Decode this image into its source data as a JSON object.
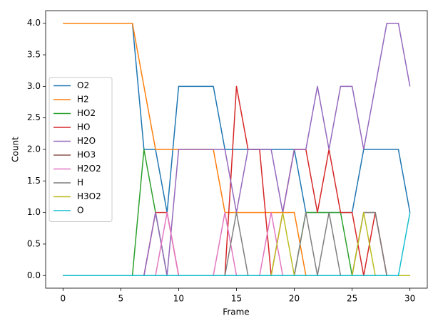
{
  "chart_data": {
    "type": "line",
    "x": [
      0,
      1,
      2,
      3,
      4,
      5,
      6,
      7,
      8,
      9,
      10,
      11,
      12,
      13,
      14,
      15,
      16,
      17,
      18,
      19,
      20,
      21,
      22,
      23,
      24,
      25,
      26,
      27,
      28,
      29,
      30
    ],
    "xlabel": "Frame",
    "ylabel": "Count",
    "xlim": [
      -1.5,
      31.5
    ],
    "ylim": [
      -0.2,
      4.2
    ],
    "xticks": [
      0,
      5,
      10,
      15,
      20,
      25,
      30
    ],
    "yticks": [
      {
        "value": 0,
        "label": "0.0"
      },
      {
        "value": 0.5,
        "label": "0.5"
      },
      {
        "value": 1,
        "label": "1.0"
      },
      {
        "value": 1.5,
        "label": "1.5"
      },
      {
        "value": 2,
        "label": "2.0"
      },
      {
        "value": 2.5,
        "label": "2.5"
      },
      {
        "value": 3,
        "label": "3.0"
      },
      {
        "value": 3.5,
        "label": "3.5"
      },
      {
        "value": 4,
        "label": "4.0"
      }
    ],
    "legend": "center left",
    "series": [
      {
        "name": "O2",
        "color": "#1f77b4",
        "values": [
          4,
          4,
          4,
          4,
          4,
          4,
          4,
          2,
          2,
          1,
          3,
          3,
          3,
          3,
          2,
          2,
          2,
          2,
          2,
          2,
          2,
          1,
          1,
          1,
          1,
          1,
          2,
          2,
          2,
          2,
          1
        ]
      },
      {
        "name": "H2",
        "color": "#ff7f0e",
        "values": [
          4,
          4,
          4,
          4,
          4,
          4,
          4,
          3,
          2,
          2,
          2,
          2,
          2,
          2,
          1,
          1,
          1,
          1,
          1,
          1,
          1,
          0,
          0,
          0,
          0,
          0,
          0,
          0,
          0,
          0,
          0
        ]
      },
      {
        "name": "HO2",
        "color": "#2ca02c",
        "values": [
          0,
          0,
          0,
          0,
          0,
          0,
          0,
          2,
          1,
          0,
          0,
          0,
          0,
          0,
          0,
          0,
          0,
          0,
          0,
          0,
          0,
          1,
          1,
          1,
          1,
          0,
          0,
          0,
          0,
          0,
          0
        ]
      },
      {
        "name": "HO",
        "color": "#d62728",
        "values": [
          0,
          0,
          0,
          0,
          0,
          0,
          0,
          0,
          1,
          1,
          0,
          0,
          0,
          0,
          0,
          3,
          2,
          2,
          0,
          1,
          2,
          2,
          1,
          2,
          1,
          1,
          0,
          1,
          0,
          0,
          0
        ]
      },
      {
        "name": "H2O",
        "color": "#9467bd",
        "values": [
          0,
          0,
          0,
          0,
          0,
          0,
          0,
          0,
          1,
          0,
          2,
          2,
          2,
          2,
          2,
          1,
          2,
          2,
          2,
          1,
          2,
          2,
          3,
          2,
          3,
          3,
          2,
          3,
          4,
          4,
          3
        ]
      },
      {
        "name": "HO3",
        "color": "#8c564b",
        "values": [
          0,
          0,
          0,
          0,
          0,
          0,
          0,
          0,
          0,
          0,
          0,
          0,
          0,
          0,
          0,
          0,
          0,
          0,
          0,
          0,
          0,
          0,
          0,
          0,
          0,
          0,
          1,
          1,
          0,
          0,
          0
        ]
      },
      {
        "name": "H2O2",
        "color": "#e377c2",
        "values": [
          0,
          0,
          0,
          0,
          0,
          0,
          0,
          0,
          0,
          1,
          0,
          0,
          0,
          0,
          1,
          0,
          0,
          0,
          1,
          0,
          0,
          0,
          0,
          0,
          0,
          0,
          0,
          0,
          0,
          0,
          0
        ]
      },
      {
        "name": "H",
        "color": "#7f7f7f",
        "values": [
          0,
          0,
          0,
          0,
          0,
          0,
          0,
          0,
          0,
          0,
          0,
          0,
          0,
          0,
          0,
          1,
          0,
          0,
          0,
          0,
          0,
          1,
          0,
          1,
          0,
          0,
          1,
          1,
          0,
          0,
          0
        ]
      },
      {
        "name": "H3O2",
        "color": "#bcbd22",
        "values": [
          0,
          0,
          0,
          0,
          0,
          0,
          0,
          0,
          0,
          0,
          0,
          0,
          0,
          0,
          0,
          0,
          0,
          0,
          0,
          1,
          0,
          0,
          0,
          0,
          0,
          0,
          1,
          0,
          0,
          0,
          0
        ]
      },
      {
        "name": "O",
        "color": "#17becf",
        "values": [
          0,
          0,
          0,
          0,
          0,
          0,
          0,
          0,
          0,
          0,
          0,
          0,
          0,
          0,
          0,
          0,
          0,
          0,
          0,
          0,
          0,
          0,
          0,
          0,
          0,
          0,
          0,
          0,
          0,
          0,
          1
        ]
      }
    ]
  }
}
